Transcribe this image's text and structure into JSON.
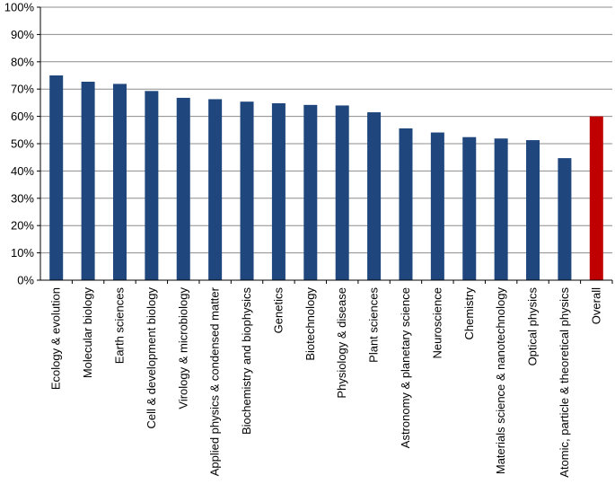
{
  "chart_data": {
    "type": "bar",
    "title": "",
    "xlabel": "",
    "ylabel": "",
    "ylim": [
      0,
      100
    ],
    "y_ticks": [
      "0%",
      "10%",
      "20%",
      "30%",
      "40%",
      "50%",
      "60%",
      "70%",
      "80%",
      "90%",
      "100%"
    ],
    "grid": true,
    "categories": [
      "Ecology & evolution",
      "Molecular biology",
      "Earth sciences",
      "Cell & development biology",
      "Virology & microbiology",
      "Applied physics & condensed matter",
      "Biochemistry and biophysics",
      "Genetics",
      "Biotechnology",
      "Physiology & disease",
      "Plant sciences",
      "Astronomy & planetary science",
      "Neuroscience",
      "Chemistry",
      "Materials science & nanotechnology",
      "Optical physics",
      "Atomic, particle & theoretical physics",
      "Overall"
    ],
    "values": [
      75,
      72.7,
      71.9,
      69.3,
      66.8,
      66.3,
      65.4,
      64.8,
      64.2,
      64,
      61.5,
      55.6,
      54.1,
      52.4,
      51.9,
      51.3,
      44.7,
      60
    ],
    "colors": {
      "default": "#1f477e",
      "highlight": "#c00000"
    },
    "highlight_category": "Overall"
  }
}
